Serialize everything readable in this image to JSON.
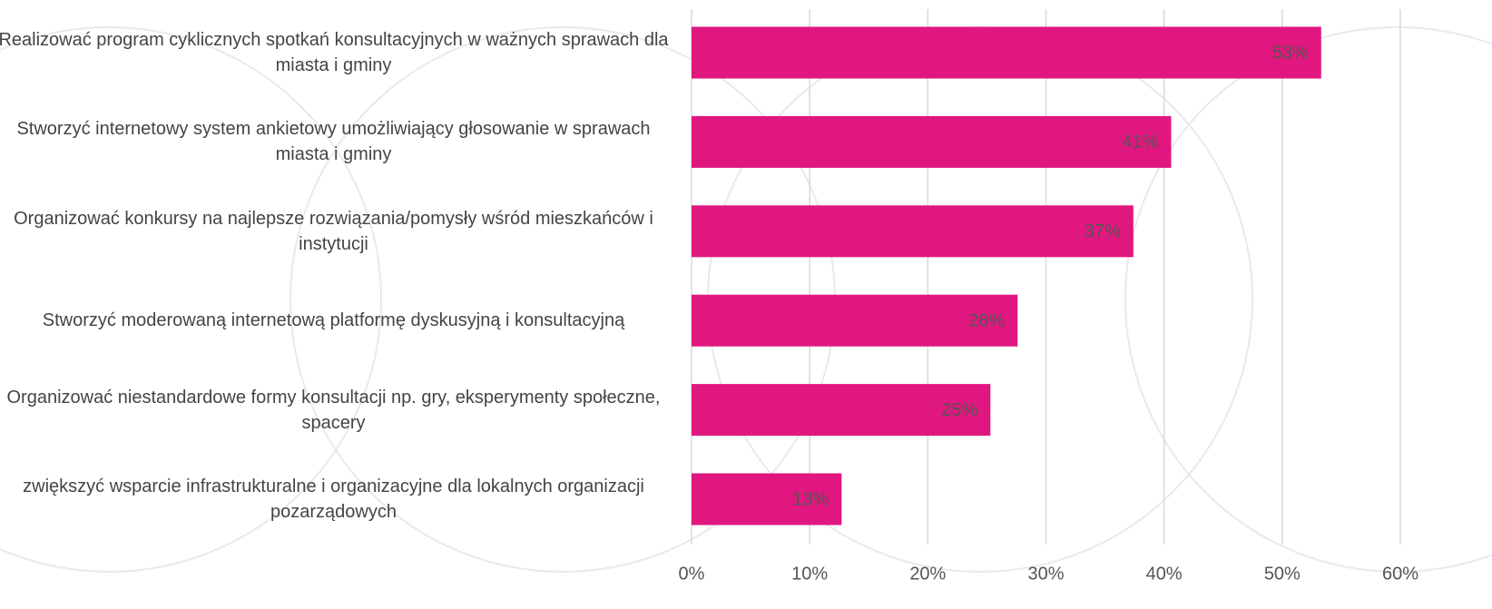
{
  "chart_data": {
    "type": "bar",
    "orientation": "horizontal",
    "categories": [
      "Realizować program cyklicznych spotkań konsultacyjnych w ważnych sprawach dla miasta i gminy",
      "Stworzyć internetowy system ankietowy umożliwiający głosowanie w sprawach miasta i gminy",
      "Organizować konkursy na najlepsze rozwiązania/pomysły wśród mieszkańców i instytucji",
      "Stworzyć moderowaną internetową platformę dyskusyjną i konsultacyjną",
      "Organizować niestandardowe formy konsultacji np. gry, eksperymenty społeczne, spacery",
      "zwiększyć wsparcie infrastrukturalne i organizacyjne dla lokalnych organizacji pozarządowych"
    ],
    "values": [
      53.3,
      40.6,
      37.4,
      27.6,
      25.3,
      12.7
    ],
    "value_labels": [
      "53%",
      "41%",
      "37%",
      "28%",
      "25%",
      "13%"
    ],
    "color": "#e0177f",
    "xlim": [
      0,
      60
    ],
    "xticks": [
      {
        "value": 0,
        "label": "0%"
      },
      {
        "value": 10,
        "label": "10%"
      },
      {
        "value": 20,
        "label": "20%"
      },
      {
        "value": 30,
        "label": "30%"
      },
      {
        "value": 40,
        "label": "40%"
      },
      {
        "value": 50,
        "label": "50%"
      },
      {
        "value": 60,
        "label": "60%"
      }
    ],
    "grid": true
  }
}
